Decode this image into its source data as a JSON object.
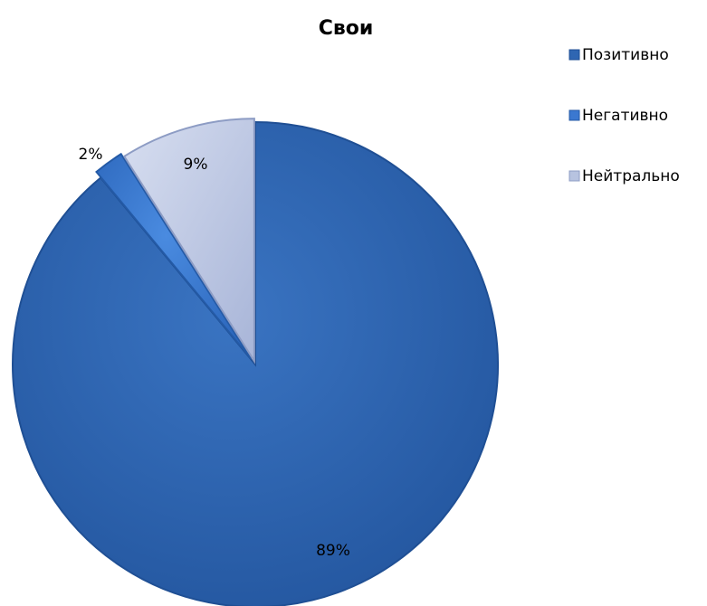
{
  "chart_data": {
    "type": "pie",
    "title": "Свои",
    "categories": [
      "Позитивно",
      "Негативно",
      "Нейтрально"
    ],
    "values": [
      89,
      2,
      9
    ],
    "data_labels": [
      "89%",
      "2%",
      "9%"
    ],
    "legend_position": "right",
    "colors": {
      "Позитивно": "#2f66b2",
      "Негативно": "#3b78d0",
      "Нейтрально": "#b7c3e0"
    }
  }
}
